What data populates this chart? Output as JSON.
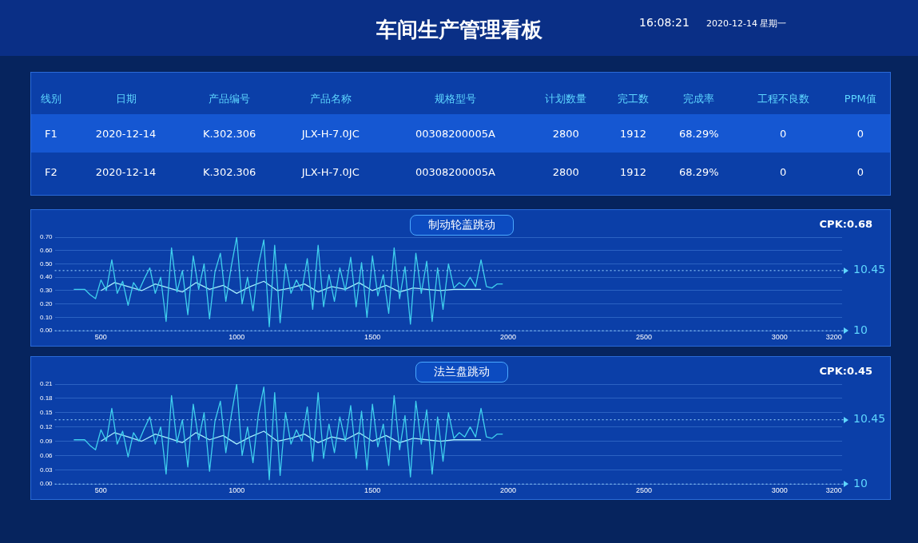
{
  "chart_data": [
    {
      "type": "other",
      "title": "车间生产管理看板",
      "annotations": [
        "16:08:21",
        "2020-12-14  星期一"
      ],
      "categories": [
        "线别",
        "日期",
        "产品编号",
        "产品名称",
        "规格型号",
        "计划数量",
        "完工数",
        "完成率",
        "工程不良数",
        "PPM值"
      ],
      "cell_labels": [
        [
          "F1",
          "2020-12-14",
          "K.302.306",
          "JLX-H-7.0JC",
          "00308200005A",
          "2800",
          "1912",
          "68.29%",
          "0",
          "0"
        ],
        [
          "F2",
          "2020-12-14",
          "K.302.306",
          "JLX-H-7.0JC",
          "00308200005A",
          "2800",
          "1912",
          "68.29%",
          "0",
          "0"
        ]
      ]
    },
    {
      "type": "line",
      "title": "制动轮盖跳动",
      "annotations": [
        "CPK:0.68"
      ],
      "xlim": [
        330,
        3230
      ],
      "xticks": [
        500,
        1000,
        1500,
        2000,
        2500,
        3000,
        3200
      ],
      "ylim": [
        0,
        0.7
      ],
      "yticks": [
        {
          "value": 0,
          "label": "0.00"
        },
        {
          "value": 0.1,
          "label": "0.10"
        },
        {
          "value": 0.2,
          "label": "0.20"
        },
        {
          "value": 0.3,
          "label": "0.30"
        },
        {
          "value": 0.4,
          "label": "0.40"
        },
        {
          "value": 0.5,
          "label": "0.50"
        },
        {
          "value": 0.6,
          "label": "0.60"
        },
        {
          "value": 0.7,
          "label": "0.70"
        }
      ],
      "y2lim": [
        10,
        10.7
      ],
      "grid": "y",
      "legend": false,
      "marker": "none",
      "ref_lines": [
        {
          "axis": "y2",
          "value": 10.45,
          "label": "10.45"
        },
        {
          "axis": "y2",
          "value": 10,
          "label": "10"
        }
      ],
      "series": [
        {
          "color": "#3fd0ee",
          "x": [
            400,
            420,
            440,
            460,
            480,
            500,
            520,
            540,
            560,
            580,
            600,
            620,
            640,
            660,
            680,
            700,
            720,
            740,
            760,
            780,
            800,
            820,
            840,
            860,
            880,
            900,
            920,
            940,
            960,
            980,
            1000,
            1020,
            1040,
            1060,
            1080,
            1100,
            1120,
            1140,
            1160,
            1180,
            1200,
            1220,
            1240,
            1260,
            1280,
            1300,
            1320,
            1340,
            1360,
            1380,
            1400,
            1420,
            1440,
            1460,
            1480,
            1500,
            1520,
            1540,
            1560,
            1580,
            1600,
            1620,
            1640,
            1660,
            1680,
            1700,
            1720,
            1740,
            1760,
            1780,
            1800,
            1820,
            1840,
            1860,
            1880,
            1900,
            1920,
            1940,
            1960,
            1980
          ],
          "values": [
            0.31,
            0.31,
            0.31,
            0.27,
            0.24,
            0.38,
            0.3,
            0.53,
            0.28,
            0.37,
            0.19,
            0.36,
            0.3,
            0.39,
            0.47,
            0.28,
            0.4,
            0.07,
            0.62,
            0.29,
            0.45,
            0.12,
            0.56,
            0.31,
            0.5,
            0.09,
            0.44,
            0.58,
            0.22,
            0.48,
            0.7,
            0.2,
            0.4,
            0.15,
            0.49,
            0.68,
            0.03,
            0.64,
            0.06,
            0.5,
            0.28,
            0.38,
            0.3,
            0.54,
            0.16,
            0.64,
            0.18,
            0.42,
            0.22,
            0.47,
            0.3,
            0.55,
            0.18,
            0.51,
            0.1,
            0.56,
            0.26,
            0.42,
            0.13,
            0.62,
            0.24,
            0.48,
            0.05,
            0.58,
            0.28,
            0.52,
            0.07,
            0.47,
            0.16,
            0.5,
            0.32,
            0.36,
            0.33,
            0.4,
            0.33,
            0.53,
            0.33,
            0.32,
            0.35,
            0.35
          ]
        },
        {
          "color": "#a6eefc",
          "x": [
            500,
            550,
            600,
            650,
            700,
            750,
            800,
            850,
            900,
            950,
            1000,
            1050,
            1100,
            1150,
            1200,
            1250,
            1300,
            1350,
            1400,
            1450,
            1500,
            1550,
            1600,
            1650,
            1700,
            1750,
            1800,
            1850,
            1900
          ],
          "values": [
            0.3,
            0.36,
            0.33,
            0.3,
            0.35,
            0.32,
            0.29,
            0.36,
            0.31,
            0.34,
            0.28,
            0.33,
            0.37,
            0.3,
            0.32,
            0.35,
            0.29,
            0.33,
            0.31,
            0.36,
            0.3,
            0.34,
            0.29,
            0.32,
            0.31,
            0.3,
            0.31,
            0.31,
            0.31
          ]
        }
      ]
    },
    {
      "type": "line",
      "title": "法兰盘跳动",
      "annotations": [
        "CPK:0.45"
      ],
      "xlim": [
        330,
        3230
      ],
      "xticks": [
        500,
        1000,
        1500,
        2000,
        2500,
        3000,
        3200
      ],
      "ylim": [
        0,
        0.21
      ],
      "yticks": [
        {
          "value": 0,
          "label": "0.00"
        },
        {
          "value": 0.03,
          "label": "0.03"
        },
        {
          "value": 0.06,
          "label": "0.06"
        },
        {
          "value": 0.09,
          "label": "0.09"
        },
        {
          "value": 0.12,
          "label": "0.12"
        },
        {
          "value": 0.15,
          "label": "0.15"
        },
        {
          "value": 0.18,
          "label": "0.18"
        },
        {
          "value": 0.21,
          "label": "0.21"
        }
      ],
      "y2lim": [
        10,
        10.7
      ],
      "grid": "y",
      "legend": false,
      "marker": "none",
      "ref_lines": [
        {
          "axis": "y2",
          "value": 10.45,
          "label": "10.45"
        },
        {
          "axis": "y2",
          "value": 10,
          "label": "10"
        }
      ],
      "series": [
        {
          "color": "#3fd0ee",
          "x": [
            400,
            420,
            440,
            460,
            480,
            500,
            520,
            540,
            560,
            580,
            600,
            620,
            640,
            660,
            680,
            700,
            720,
            740,
            760,
            780,
            800,
            820,
            840,
            860,
            880,
            900,
            920,
            940,
            960,
            980,
            1000,
            1020,
            1040,
            1060,
            1080,
            1100,
            1120,
            1140,
            1160,
            1180,
            1200,
            1220,
            1240,
            1260,
            1280,
            1300,
            1320,
            1340,
            1360,
            1380,
            1400,
            1420,
            1440,
            1460,
            1480,
            1500,
            1520,
            1540,
            1560,
            1580,
            1600,
            1620,
            1640,
            1660,
            1680,
            1700,
            1720,
            1740,
            1760,
            1780,
            1800,
            1820,
            1840,
            1860,
            1880,
            1900,
            1920,
            1940,
            1960,
            1980
          ],
          "values": [
            0.093,
            0.093,
            0.093,
            0.081,
            0.072,
            0.114,
            0.09,
            0.159,
            0.084,
            0.111,
            0.057,
            0.108,
            0.09,
            0.117,
            0.141,
            0.084,
            0.12,
            0.021,
            0.186,
            0.087,
            0.135,
            0.036,
            0.168,
            0.093,
            0.15,
            0.027,
            0.132,
            0.174,
            0.066,
            0.144,
            0.21,
            0.06,
            0.12,
            0.045,
            0.147,
            0.204,
            0.009,
            0.192,
            0.018,
            0.15,
            0.084,
            0.114,
            0.09,
            0.162,
            0.048,
            0.192,
            0.054,
            0.126,
            0.066,
            0.141,
            0.09,
            0.165,
            0.054,
            0.153,
            0.03,
            0.168,
            0.078,
            0.126,
            0.039,
            0.186,
            0.072,
            0.144,
            0.015,
            0.174,
            0.084,
            0.156,
            0.021,
            0.141,
            0.048,
            0.15,
            0.096,
            0.108,
            0.099,
            0.12,
            0.099,
            0.159,
            0.099,
            0.096,
            0.105,
            0.105
          ]
        },
        {
          "color": "#a6eefc",
          "x": [
            500,
            550,
            600,
            650,
            700,
            750,
            800,
            850,
            900,
            950,
            1000,
            1050,
            1100,
            1150,
            1200,
            1250,
            1300,
            1350,
            1400,
            1450,
            1500,
            1550,
            1600,
            1650,
            1700,
            1750,
            1800,
            1850,
            1900
          ],
          "values": [
            0.09,
            0.108,
            0.099,
            0.09,
            0.105,
            0.096,
            0.087,
            0.108,
            0.093,
            0.102,
            0.084,
            0.099,
            0.111,
            0.09,
            0.096,
            0.105,
            0.087,
            0.099,
            0.093,
            0.108,
            0.09,
            0.102,
            0.087,
            0.096,
            0.093,
            0.09,
            0.093,
            0.093,
            0.093
          ]
        }
      ]
    }
  ]
}
